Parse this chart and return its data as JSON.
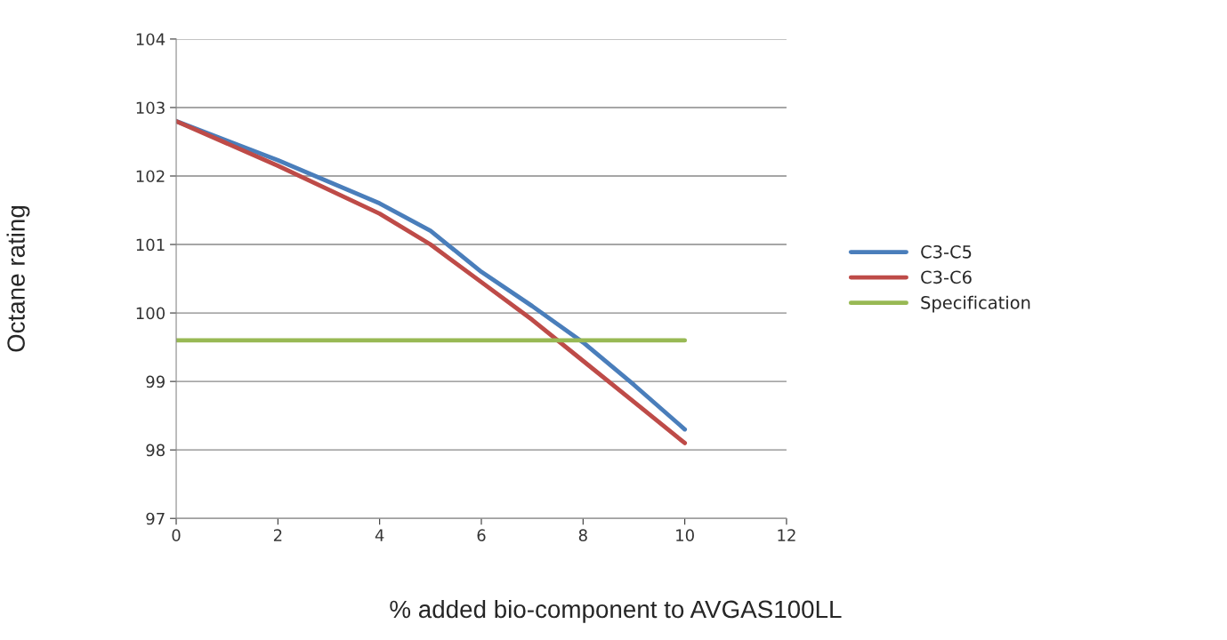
{
  "chart_data": {
    "type": "line",
    "xlabel": "% added bio-component to AVGAS100LL",
    "ylabel": "Octane rating",
    "x": [
      0,
      2,
      4,
      5,
      6,
      7,
      8,
      9,
      10
    ],
    "series": [
      {
        "name": "C3-C5",
        "color": "#4a7ebb",
        "values": [
          102.8,
          102.23,
          101.6,
          101.2,
          100.6,
          100.1,
          99.57,
          98.95,
          98.3
        ]
      },
      {
        "name": "C3-C6",
        "color": "#be4b48",
        "values": [
          102.8,
          102.15,
          101.45,
          101.0,
          100.45,
          99.9,
          99.3,
          98.7,
          98.1
        ]
      },
      {
        "name": "Specification",
        "color": "#98b954",
        "x": [
          0,
          10
        ],
        "values": [
          99.6,
          99.6
        ]
      }
    ],
    "xlim": [
      0,
      12
    ],
    "xticks": [
      0,
      2,
      4,
      6,
      8,
      10,
      12
    ],
    "ylim": [
      97,
      104
    ],
    "yticks": [
      97,
      98,
      99,
      100,
      101,
      102,
      103,
      104
    ],
    "grid": "y",
    "legend": "right",
    "marker": "none",
    "line_style": "solid"
  }
}
